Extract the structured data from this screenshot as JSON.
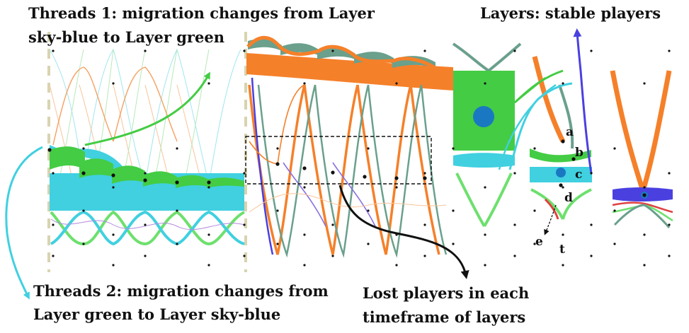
{
  "colors": {
    "sky_blue": "#40d0e0",
    "green": "#44cc44",
    "orange": "#f5802a",
    "teal": "#6aa08c",
    "violet": "#4a40e0",
    "blue_point": "#1a78c2",
    "red": "#e04040",
    "dashed_axis": "#d8d4b0",
    "dot": "#111111"
  },
  "annotations": {
    "threads1": [
      "Threads 1: migration changes from Layer",
      "sky-blue to Layer green"
    ],
    "layers": [
      "Layers: stable players"
    ],
    "threads2": [
      "Threads 2: migration changes from",
      "Layer green to Layer sky-blue"
    ],
    "lost": [
      "Lost players in each",
      "timeframe of layers"
    ]
  },
  "markers": [
    "a",
    "b",
    "c",
    "d",
    "e",
    "t"
  ],
  "icons": {
    "arrows": "curved-arrow"
  }
}
